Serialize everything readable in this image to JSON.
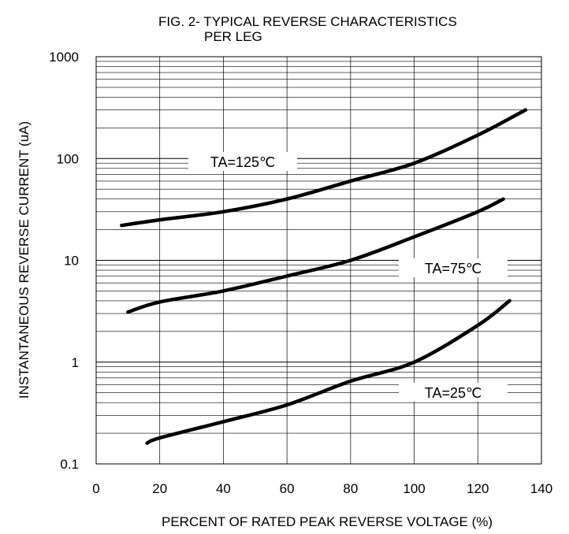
{
  "chart_data": {
    "type": "line",
    "title": [
      "FIG. 2- TYPICAL REVERSE CHARACTERISTICS",
      "PER LEG"
    ],
    "xlabel": "PERCENT OF RATED PEAK REVERSE VOLTAGE (%)",
    "ylabel": "INSTANTANEOUS REVERSE CURRENT (uA)",
    "xlim": [
      0,
      140
    ],
    "ylim": [
      0.1,
      1000
    ],
    "yscale": "log",
    "xticks": [
      0,
      20,
      40,
      60,
      80,
      100,
      120,
      140
    ],
    "xtick_labels": [
      "0",
      "20",
      "40",
      "60",
      "80",
      "100",
      "120",
      "140"
    ],
    "yticks": [
      0.1,
      1,
      10,
      100,
      1000
    ],
    "ytick_labels": [
      "0.1",
      "1",
      "10",
      "100",
      "1000"
    ],
    "grid": true,
    "series": [
      {
        "name": "TA=125℃",
        "x": [
          8,
          20,
          40,
          60,
          80,
          100,
          120,
          135
        ],
        "y": [
          22,
          25,
          30,
          40,
          60,
          90,
          170,
          300
        ]
      },
      {
        "name": "TA=75℃",
        "x": [
          10,
          20,
          40,
          60,
          80,
          100,
          120,
          128
        ],
        "y": [
          3.1,
          3.9,
          5,
          7,
          10,
          17,
          30,
          40
        ]
      },
      {
        "name": "TA=25℃",
        "x": [
          16,
          20,
          40,
          60,
          80,
          100,
          120,
          130
        ],
        "y": [
          0.16,
          0.18,
          0.26,
          0.38,
          0.65,
          1.0,
          2.3,
          4
        ]
      }
    ],
    "line_color": "#000000"
  }
}
